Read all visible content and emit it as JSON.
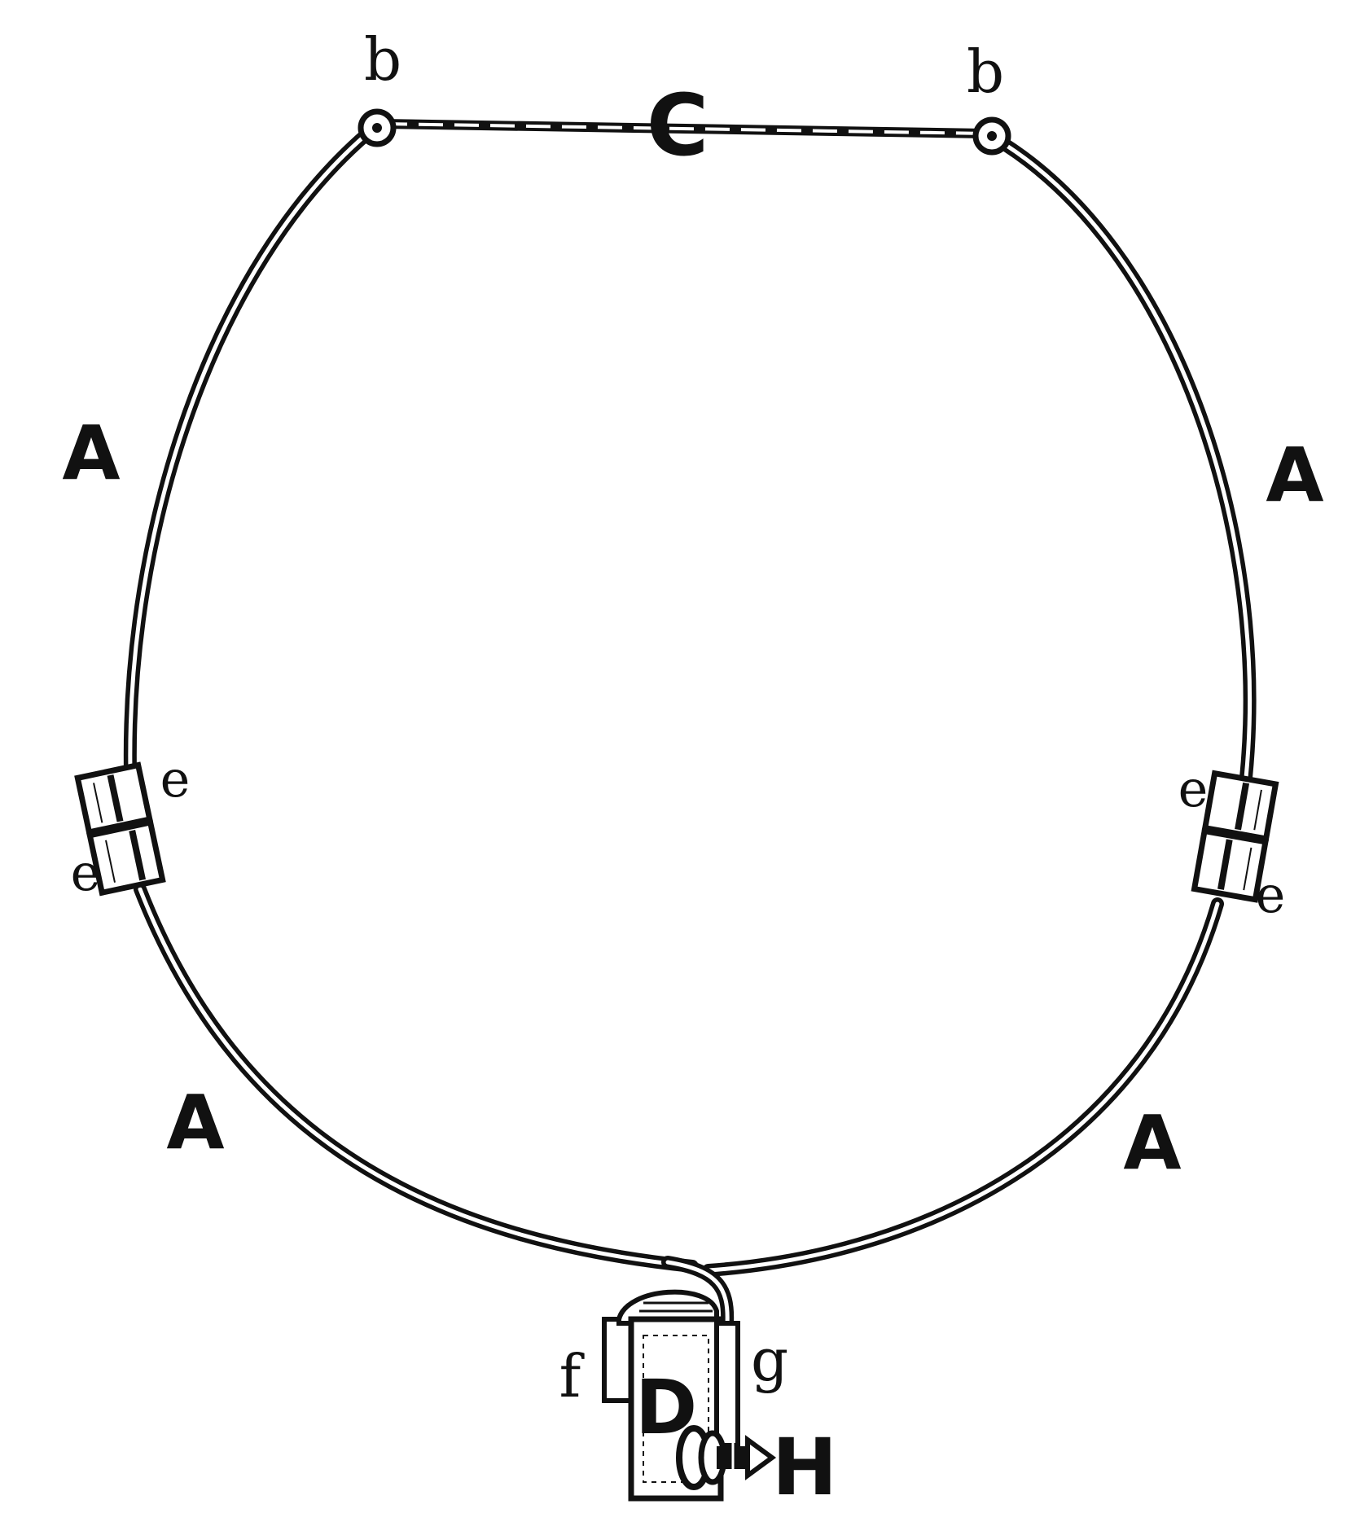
{
  "diagram": {
    "labels": {
      "pivot_left": "b",
      "pivot_right": "b",
      "crossbar": "C",
      "arm_upper_left": "A",
      "arm_upper_right": "A",
      "arm_lower_left": "A",
      "arm_lower_right": "A",
      "joint_left_top": "e",
      "joint_left_bottom": "e",
      "joint_right_top": "e",
      "joint_right_bottom": "e",
      "box_left_part": "f",
      "box_right_part": "g",
      "box": "D",
      "screw": "H"
    },
    "colors": {
      "ink": "#111111",
      "paper": "#ffffff"
    }
  }
}
